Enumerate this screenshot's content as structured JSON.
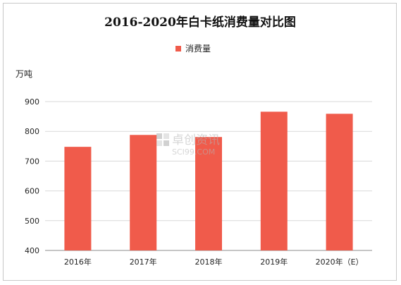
{
  "chart_data": {
    "type": "bar",
    "title": "2016-2020年白卡纸消费量对比图",
    "ylabel": "万吨",
    "xlabel": "",
    "categories": [
      "2016年",
      "2017年",
      "2018年",
      "2019年",
      "2020年（E）"
    ],
    "series": [
      {
        "name": "消费量",
        "values": [
          748,
          788,
          781,
          866,
          859
        ],
        "color": "#f05b4b"
      }
    ],
    "ylim": [
      400,
      900
    ],
    "yticks": [
      400,
      500,
      600,
      700,
      800,
      900
    ],
    "grid": true,
    "legend": "top-center"
  },
  "watermark": {
    "text": "卓创资讯",
    "subtext": "SCI99.COM"
  }
}
